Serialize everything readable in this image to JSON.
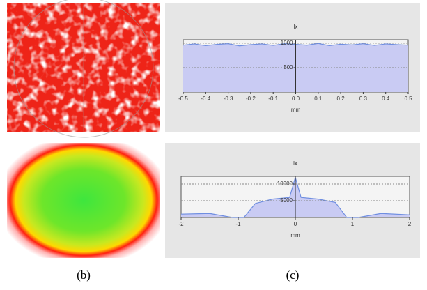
{
  "captions": [
    "(b)",
    "(c)"
  ],
  "chart_data": [
    {
      "type": "area",
      "ylabel": "lx",
      "xlabel": "mm",
      "color": "#6f8ee0",
      "fill": "#c9cbf3",
      "grid": true,
      "x": [
        -0.5,
        -0.45,
        -0.4,
        -0.35,
        -0.3,
        -0.25,
        -0.2,
        -0.15,
        -0.1,
        -0.05,
        0,
        0.05,
        0.1,
        0.15,
        0.2,
        0.25,
        0.3,
        0.35,
        0.4,
        0.45,
        0.5
      ],
      "values": [
        960,
        985,
        950,
        975,
        990,
        945,
        970,
        985,
        955,
        990,
        975,
        960,
        995,
        950,
        980,
        965,
        990,
        955,
        985,
        970,
        960
      ],
      "xlim": [
        -0.5,
        0.5
      ],
      "ylim": [
        0,
        1070
      ],
      "xticks": [
        -0.5,
        -0.4,
        -0.3,
        -0.2,
        -0.1,
        {
          "value": 0,
          "label": "0.0"
        },
        0.1,
        0.2,
        0.3,
        0.4,
        0.5
      ],
      "yticks": [
        500,
        1000
      ]
    },
    {
      "type": "area",
      "ylabel": "lx",
      "xlabel": "mm",
      "color": "#6f8ee0",
      "fill": "#c9cbf3",
      "grid": true,
      "x": [
        -2,
        -1.5,
        -1.1,
        -0.9,
        -0.7,
        -0.4,
        -0.1,
        0,
        0.1,
        0.4,
        0.7,
        0.9,
        1.1,
        1.5,
        2
      ],
      "values": [
        1000,
        1200,
        0,
        0,
        4200,
        5500,
        6000,
        12000,
        6000,
        5500,
        4500,
        0,
        0,
        1200,
        800
      ],
      "xlim": [
        -2,
        2
      ],
      "ylim": [
        0,
        12300
      ],
      "xticks": [
        -2,
        -1,
        0,
        1,
        2
      ],
      "yticks": [
        5000,
        10000
      ]
    }
  ]
}
